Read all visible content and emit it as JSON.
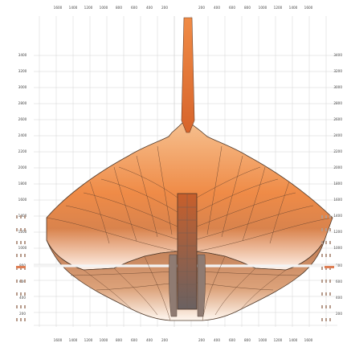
{
  "diagram": {
    "top_ticks": [
      "1600",
      "1400",
      "1200",
      "1000",
      "800",
      "600",
      "400",
      "200",
      "",
      "200",
      "400",
      "600",
      "800",
      "1000",
      "1200",
      "1400",
      "1600"
    ],
    "bottom_ticks": [
      "1600",
      "1400",
      "1200",
      "1000",
      "800",
      "600",
      "400",
      "200",
      "",
      "200",
      "400",
      "600",
      "800",
      "1000",
      "1200",
      "1400",
      "1600"
    ],
    "left_ticks": [
      "3400",
      "3200",
      "3000",
      "2800",
      "2600",
      "2400",
      "2200",
      "2000",
      "1800",
      "1600",
      "1400",
      "1200",
      "1000",
      "800",
      "600",
      "400",
      "200",
      ""
    ],
    "right_ticks": [
      "3400",
      "3200",
      "3000",
      "2800",
      "2600",
      "2400",
      "2200",
      "2000",
      "1800",
      "1600",
      "1400",
      "1200",
      "1000",
      "800",
      "600",
      "400",
      "200",
      ""
    ],
    "center_label_top": "",
    "center_label_bottom": "",
    "left_waterline_label": "",
    "left_base_label": "",
    "colors": {
      "hull_light": "#f7b37b",
      "hull_mid": "#f08a45",
      "hull_dark": "#b36a39",
      "keel": "#e16c2d",
      "grid": "#cfcfcf",
      "waterline": "#f3f3f3",
      "outline": "#5a3a24",
      "accent_red": "#d86a3b"
    }
  }
}
